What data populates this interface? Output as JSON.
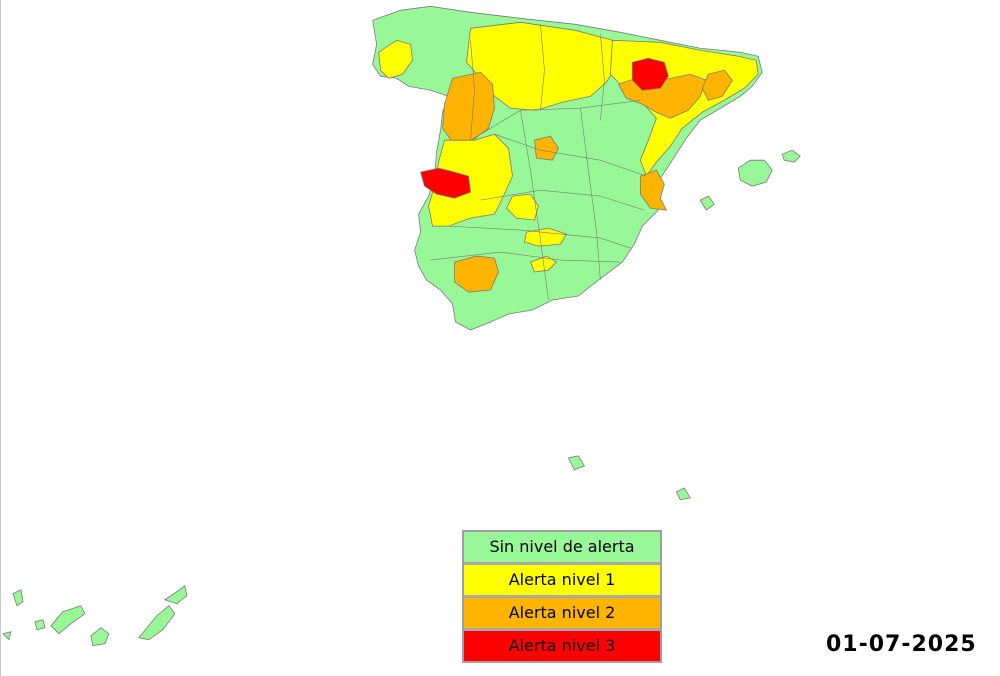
{
  "map": {
    "date": "01-07-2025",
    "colors": {
      "none": "#98f898",
      "level1": "#ffff00",
      "level2": "#ffb400",
      "level3": "#ff0000",
      "border": "#7a7a7a"
    },
    "legend": [
      {
        "label": "Sin nivel de alerta",
        "color": "#98f898",
        "text_color": "#000000"
      },
      {
        "label": "Alerta nivel 1",
        "color": "#ffff00",
        "text_color": "#000000"
      },
      {
        "label": "Alerta nivel 2",
        "color": "#ffb400",
        "text_color": "#000000"
      },
      {
        "label": "Alerta nivel 3",
        "color": "#ff0000",
        "text_color": "#000000"
      }
    ]
  }
}
